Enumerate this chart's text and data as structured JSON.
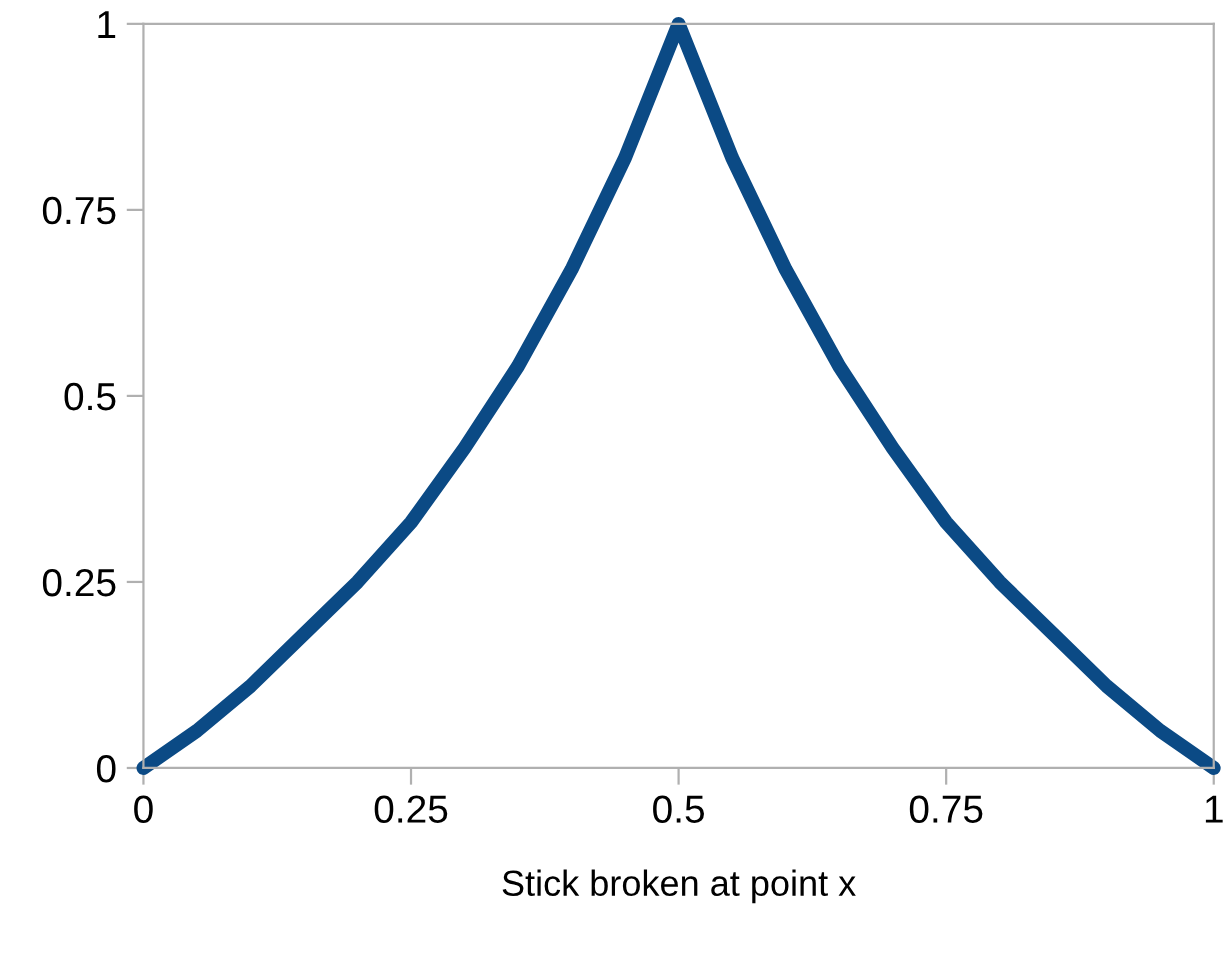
{
  "chart_data": {
    "type": "line",
    "xlabel": "Stick broken at point x",
    "x": [
      0,
      0.05,
      0.1,
      0.15,
      0.2,
      0.25,
      0.3,
      0.35,
      0.4,
      0.45,
      0.5,
      0.55,
      0.6,
      0.65,
      0.7,
      0.75,
      0.8,
      0.85,
      0.9,
      0.95,
      1
    ],
    "series": [
      {
        "color": "#0b4a85",
        "values": [
          0,
          0.05,
          0.11,
          0.18,
          0.25,
          0.33,
          0.43,
          0.54,
          0.67,
          0.82,
          1,
          0.82,
          0.67,
          0.54,
          0.43,
          0.33,
          0.25,
          0.18,
          0.11,
          0.05,
          0
        ]
      }
    ],
    "xlim": [
      0,
      1
    ],
    "ylim": [
      0,
      1
    ],
    "xticks": [
      0,
      0.25,
      0.5,
      0.75,
      1
    ],
    "yticks": [
      0,
      0.25,
      0.5,
      0.75,
      1
    ],
    "grid": false,
    "legend": false,
    "marker": "none",
    "line_style": "solid"
  }
}
